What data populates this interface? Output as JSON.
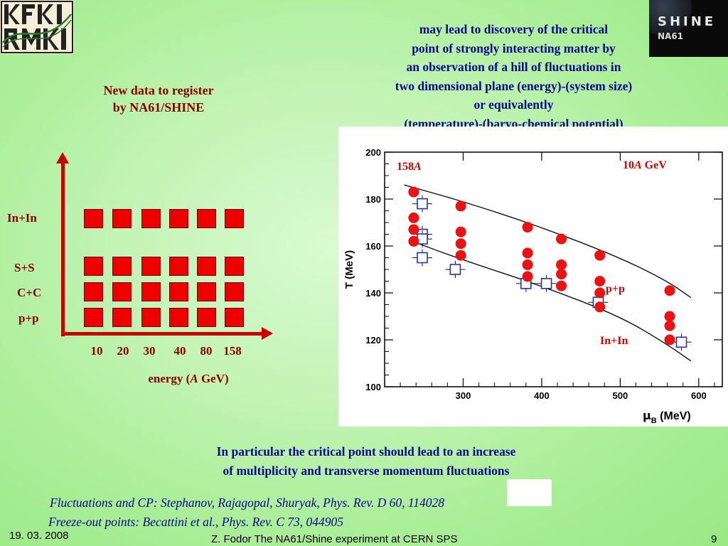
{
  "logos": {
    "left": {
      "text": "KFKI RMKI",
      "icon": "kfki-rmki-logo"
    },
    "right": {
      "title": "SHINE",
      "subtitle": "NA61",
      "icon": "shine-na61-logo"
    }
  },
  "top_text": [
    "may lead to discovery of the critical",
    "point of strongly interacting matter by",
    "an observation of a hill of fluctuations in",
    "two dimensional plane (energy)-(system size)",
    "or equivalently",
    "(temperature)-(baryo-chemical potential)"
  ],
  "new_data": [
    "New data to register",
    "by NA61/SHINE"
  ],
  "schematic": {
    "rows": [
      "In+In",
      "S+S",
      "C+C",
      "p+p"
    ],
    "energies": [
      "10",
      "20",
      "30",
      "40",
      "80",
      "158"
    ],
    "axis_label_prefix": "energy (",
    "axis_label_italic": "A",
    "axis_label_suffix": " GeV)",
    "colors": {
      "square": "#ee0000",
      "axis": "#cc0000",
      "text": "#8b0000"
    }
  },
  "chart_data": {
    "type": "scatter",
    "xlabel_symbol": "μ",
    "xlabel_sub": "B",
    "xlabel_unit": " (MeV)",
    "ylabel": "T (MeV)",
    "xlim": [
      200,
      630
    ],
    "ylim": [
      100,
      200
    ],
    "xticks": [
      300,
      400,
      500,
      600
    ],
    "yticks": [
      100,
      120,
      140,
      160,
      180,
      200
    ],
    "annotations": {
      "left_energy_num": "158",
      "left_energy_italic": "A",
      "right_energy_num": "10",
      "right_energy_italic": "A",
      "right_energy_unit": " GeV",
      "pp": "p+p",
      "inin": "In+In"
    },
    "series": [
      {
        "name": "p+p",
        "marker": "filled-circle",
        "color": "#ee1111",
        "points": [
          [
            237,
            183
          ],
          [
            237,
            172
          ],
          [
            237,
            167
          ],
          [
            237,
            162
          ],
          [
            297,
            177
          ],
          [
            297,
            166
          ],
          [
            297,
            161
          ],
          [
            297,
            156
          ],
          [
            382,
            168
          ],
          [
            382,
            157
          ],
          [
            382,
            152
          ],
          [
            382,
            147
          ],
          [
            425,
            163
          ],
          [
            425,
            152
          ],
          [
            425,
            148
          ],
          [
            425,
            143
          ],
          [
            474,
            156
          ],
          [
            474,
            145
          ],
          [
            474,
            140
          ],
          [
            474,
            134
          ],
          [
            563,
            141
          ],
          [
            563,
            130
          ],
          [
            563,
            126
          ],
          [
            563,
            120
          ]
        ]
      },
      {
        "name": "In+In",
        "marker": "open-square",
        "color": "#2233bb",
        "points": [
          [
            248,
            178
          ],
          [
            248,
            165
          ],
          [
            248,
            163
          ],
          [
            248,
            155
          ],
          [
            290,
            150
          ],
          [
            380,
            144
          ],
          [
            406,
            144
          ],
          [
            472,
            136
          ],
          [
            578,
            119
          ]
        ]
      }
    ],
    "curves": [
      {
        "name": "upper",
        "points": [
          [
            225,
            186
          ],
          [
            300,
            179
          ],
          [
            400,
            168
          ],
          [
            500,
            155
          ],
          [
            560,
            145
          ],
          [
            590,
            138
          ]
        ]
      },
      {
        "name": "lower",
        "points": [
          [
            235,
            162
          ],
          [
            300,
            154
          ],
          [
            400,
            143
          ],
          [
            500,
            130
          ],
          [
            560,
            118
          ],
          [
            590,
            111
          ]
        ]
      }
    ]
  },
  "bottom_text": [
    "In particular the critical point should lead to an increase",
    "of multiplicity and transverse momentum fluctuations"
  ],
  "references": [
    "Fluctuations and CP: Stephanov, Rajagopal, Shuryak, Phys. Rev. D 60, 114028",
    "Freeze-out points: Becattini et al., Phys. Rev. C 73, 044905"
  ],
  "footer": {
    "date": "19. 03. 2008",
    "title": "Z. Fodor The NA61/Shine experiment at CERN SPS",
    "page": "9"
  }
}
